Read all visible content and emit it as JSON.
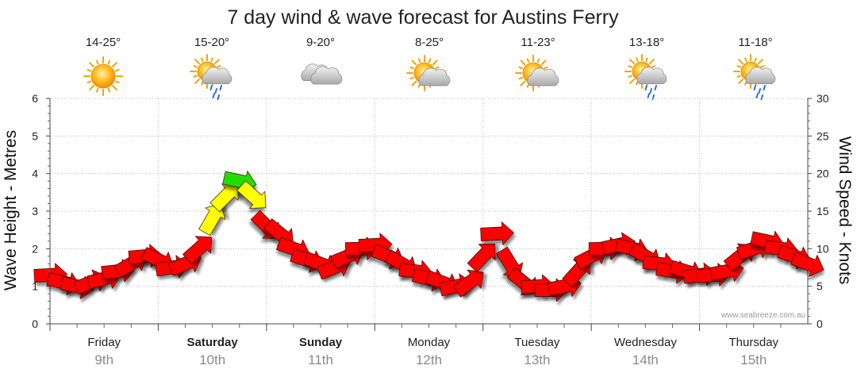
{
  "title": "7 day wind & wave forecast for Austins Ferry",
  "credit": "www.seabreeze.com.au",
  "days": [
    {
      "day": "Friday",
      "date": "9th",
      "temp": "14-25°",
      "icon": "sunny-icon",
      "bold": false
    },
    {
      "day": "Saturday",
      "date": "10th",
      "temp": "15-20°",
      "icon": "sun-cloud-rain-icon",
      "bold": true
    },
    {
      "day": "Sunday",
      "date": "11th",
      "temp": "9-20°",
      "icon": "cloudy-icon",
      "bold": true
    },
    {
      "day": "Monday",
      "date": "12th",
      "temp": "8-25°",
      "icon": "sun-cloud-icon",
      "bold": false
    },
    {
      "day": "Tuesday",
      "date": "13th",
      "temp": "11-23°",
      "icon": "sun-cloud-icon",
      "bold": false
    },
    {
      "day": "Wednesday",
      "date": "14th",
      "temp": "13-18°",
      "icon": "sun-cloud-rain-icon",
      "bold": false
    },
    {
      "day": "Thursday",
      "date": "15th",
      "temp": "11-18°",
      "icon": "sun-cloud-rain-icon",
      "bold": false
    }
  ],
  "chart_data": {
    "type": "line",
    "title": "7 day wind & wave forecast for Austins Ferry",
    "ylabel": "Wave Height - Metres",
    "y2label": "Wind Speed - Knots",
    "ylim": [
      0,
      6
    ],
    "y2lim": [
      0,
      30
    ],
    "yticks": [
      "0",
      "1",
      "2",
      "3",
      "4",
      "5",
      "6"
    ],
    "y2ticks": [
      "0",
      "5",
      "10",
      "15",
      "20",
      "25",
      "30"
    ],
    "grid": true,
    "colors": {
      "low": "#ff0000",
      "mid": "#ffff00",
      "high": "#22dd00"
    },
    "series": [
      {
        "name": "Wind Speed - Knots",
        "x_hours": [
          0,
          3,
          6,
          9,
          12,
          15,
          18,
          21,
          24,
          27,
          30,
          33,
          36,
          39,
          42,
          45,
          48,
          51,
          54,
          57,
          60,
          63,
          66,
          69,
          72,
          75,
          78,
          81,
          84,
          87,
          90,
          93,
          96,
          99,
          102,
          105,
          108,
          111,
          114,
          117,
          120,
          123,
          126,
          129,
          132,
          135,
          138,
          141,
          144,
          147,
          150,
          153,
          156,
          159,
          162,
          165,
          168
        ],
        "values": [
          6.5,
          5.5,
          5,
          5.5,
          6,
          7,
          8,
          9,
          8.5,
          7.5,
          8,
          10,
          14,
          17,
          19,
          17,
          13,
          12,
          10,
          8.5,
          8,
          7.5,
          9,
          10,
          10.5,
          9,
          8,
          7,
          6,
          5.5,
          5,
          5.5,
          9,
          12,
          8,
          5.5,
          5,
          4.5,
          5,
          7,
          9,
          10,
          10.5,
          10,
          9,
          8,
          7,
          7,
          6.5,
          6.5,
          7,
          9,
          10,
          11,
          10,
          9,
          8
        ]
      }
    ]
  }
}
